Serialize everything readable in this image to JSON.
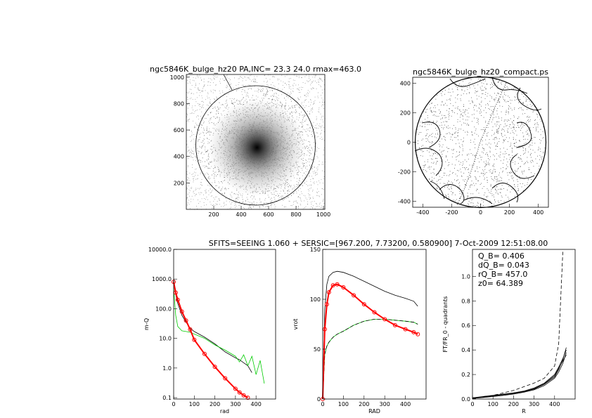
{
  "header": "SFITS=SEEING 1.060 + SERSIC=[967.200, 7.73200, 0.580900]   7-Oct-2009 12:51:08.00",
  "chart_data": [
    {
      "type": "image",
      "title": "ngc5846K_bulge_hz20 PA,INC= 23.3 24.0 rmax=463.0",
      "xlim": [
        0,
        1010
      ],
      "ylim": [
        0,
        1020
      ],
      "xticks": [
        200,
        400,
        600,
        800,
        1000
      ],
      "yticks": [
        200,
        400,
        600,
        800,
        1000
      ]
    },
    {
      "type": "contour",
      "title": "ngc5846K_bulge_hz20_compact.ps",
      "xlim": [
        -470,
        470
      ],
      "ylim": [
        -440,
        440
      ],
      "xticks": [
        -400,
        -200,
        0,
        200,
        400
      ],
      "yticks": [
        -400,
        -200,
        0,
        200,
        400
      ]
    },
    {
      "type": "line",
      "xlabel": "rad",
      "ylabel": "m-Q",
      "log_y": true,
      "xlim": [
        0,
        495
      ],
      "ylim": [
        0.09,
        10000
      ],
      "xticks": [
        0,
        100,
        200,
        300,
        400
      ],
      "yticks": [
        {
          "value": 0.1,
          "label": "0.1"
        },
        {
          "value": 1,
          "label": "1.0"
        },
        {
          "value": 10,
          "label": "10.0"
        },
        {
          "value": 100,
          "label": "100.0"
        },
        {
          "value": 1000,
          "label": "1000.0"
        },
        {
          "value": 10000,
          "label": "10000.0"
        }
      ],
      "x": [
        0,
        10,
        20,
        40,
        60,
        80,
        100,
        150,
        200,
        250,
        300,
        320,
        340,
        360,
        380,
        400,
        420,
        440,
        460
      ],
      "series": [
        {
          "color": "#000000",
          "values": [
            1000,
            300,
            150,
            60,
            35,
            22,
            17,
            11,
            6.5,
            3.5,
            2.2,
            1.9,
            1.5,
            1.2,
            0.7,
            null,
            null,
            null,
            null
          ]
        },
        {
          "color": "#00cc00",
          "values": [
            500,
            60,
            25,
            18,
            17,
            16,
            14,
            10,
            6,
            4,
            2.5,
            1.6,
            2.8,
            1.2,
            2.5,
            0.6,
            1.8,
            0.3,
            null
          ]
        },
        {
          "color": "#ff0000",
          "marker": "circle",
          "values": [
            800,
            350,
            200,
            80,
            40,
            20,
            9,
            3,
            1.1,
            0.45,
            0.2,
            0.15,
            0.12,
            0.1,
            null,
            null,
            null,
            null,
            null
          ]
        }
      ]
    },
    {
      "type": "line",
      "xlabel": "RAD",
      "ylabel": "vrot",
      "xlim": [
        0,
        500
      ],
      "ylim": [
        0,
        150
      ],
      "xticks": [
        0,
        100,
        200,
        300,
        400
      ],
      "yticks": [
        0,
        50,
        100,
        150
      ],
      "x": [
        0,
        10,
        20,
        30,
        50,
        70,
        100,
        150,
        200,
        250,
        300,
        350,
        400,
        440,
        460
      ],
      "series": [
        {
          "color": "#000000",
          "values": [
            0,
            90,
            115,
            123,
            127,
            128,
            127,
            123,
            118,
            113,
            108,
            104,
            101,
            98,
            93
          ]
        },
        {
          "color": "#00cc00",
          "values": [
            0,
            45,
            53,
            57,
            62,
            65,
            68,
            74,
            78,
            80,
            80,
            79,
            78,
            77,
            75
          ]
        },
        {
          "color": "#000000",
          "linestyle": "dashed",
          "values": [
            0,
            45,
            53,
            57,
            62,
            65,
            68,
            74,
            78,
            80,
            80,
            79,
            78,
            77,
            75
          ]
        },
        {
          "color": "#ff0000",
          "marker": "circle",
          "values": [
            0,
            70,
            95,
            107,
            114,
            115,
            112,
            104,
            95,
            87,
            80,
            74,
            70,
            67,
            65
          ]
        }
      ]
    },
    {
      "type": "line",
      "xlabel": "R",
      "ylabel": "FT/FR_0 - quadrants",
      "annotations": [
        "Q_B= 0.406",
        "dQ_B= 0.043",
        "rQ_B= 457.0",
        "z0= 64.389"
      ],
      "xlim": [
        0,
        500
      ],
      "ylim": [
        0,
        1.22
      ],
      "xticks": [
        0,
        100,
        200,
        300,
        400
      ],
      "yticks": [
        {
          "value": 0,
          "label": "0.0"
        },
        0.2,
        0.4,
        0.6,
        0.8,
        {
          "value": 1,
          "label": "1.0"
        }
      ],
      "x": [
        0,
        50,
        100,
        150,
        200,
        250,
        300,
        350,
        400,
        420,
        440,
        457
      ],
      "series": [
        {
          "color": "#000000",
          "linestyle": "dashed",
          "values": [
            0,
            0.02,
            0.03,
            0.05,
            0.07,
            0.1,
            0.13,
            0.17,
            0.27,
            0.45,
            1.2,
            null
          ]
        },
        {
          "color": "#000000",
          "values": [
            0.01,
            0.015,
            0.025,
            0.035,
            0.045,
            0.06,
            0.08,
            0.12,
            0.18,
            0.24,
            0.32,
            0.42
          ]
        },
        {
          "color": "#000000",
          "values": [
            0.01,
            0.02,
            0.03,
            0.04,
            0.05,
            0.065,
            0.09,
            0.13,
            0.2,
            0.26,
            0.33,
            0.4
          ]
        },
        {
          "color": "#000000",
          "values": [
            0.005,
            0.012,
            0.02,
            0.03,
            0.04,
            0.055,
            0.075,
            0.11,
            0.17,
            0.22,
            0.29,
            0.38
          ]
        },
        {
          "color": "#000000",
          "values": [
            0.008,
            0.018,
            0.028,
            0.038,
            0.05,
            0.062,
            0.085,
            0.125,
            0.19,
            0.25,
            0.31,
            0.36
          ]
        }
      ]
    }
  ]
}
